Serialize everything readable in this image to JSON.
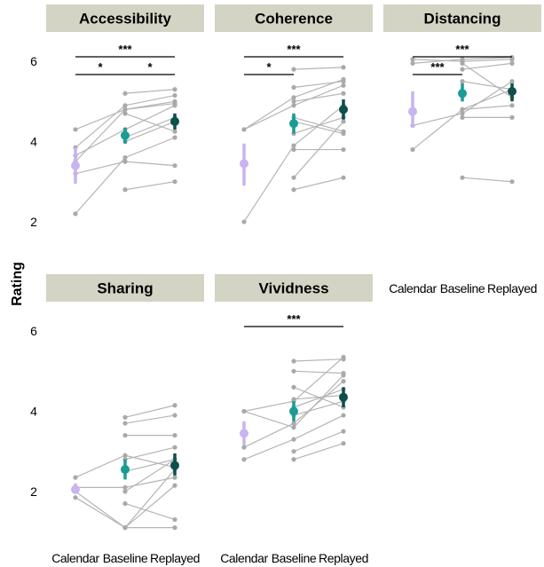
{
  "chart_data": {
    "type": "scatter",
    "ylabel": "Rating",
    "categories": [
      "Calendar",
      "Baseline",
      "Replayed"
    ],
    "ylim": [
      1.6,
      6.6
    ],
    "yticks": [
      2,
      4,
      6
    ],
    "colors": {
      "Calendar": "#c9b3f0",
      "Baseline": "#1a9b96",
      "Replayed": "#0d4f4a",
      "lines": "#b5b5b5",
      "strip": "#d4d4c4"
    },
    "panels": [
      {
        "title": "Accessibility",
        "participants": [
          [
            4.3,
            4.8,
            4.95
          ],
          [
            3.85,
            4.9,
            5.15
          ],
          [
            3.65,
            4.3,
            4.9
          ],
          [
            3.5,
            4.8,
            5.0
          ],
          [
            3.2,
            3.5,
            3.4
          ],
          [
            2.2,
            3.6,
            4.1
          ],
          [
            null,
            5.2,
            5.3
          ],
          [
            null,
            4.7,
            4.25
          ],
          [
            null,
            4.1,
            4.6
          ],
          [
            null,
            2.8,
            3.0
          ],
          [
            null,
            4.0,
            4.5
          ]
        ],
        "means": [
          3.4,
          4.15,
          4.5
        ],
        "ci": [
          [
            2.95,
            3.85
          ],
          [
            3.95,
            4.35
          ],
          [
            4.3,
            4.7
          ]
        ],
        "significance": [
          {
            "from": "Calendar",
            "to": "Replayed",
            "label": "***",
            "level": 0
          },
          {
            "from": "Calendar",
            "to": "Baseline",
            "label": "*",
            "level": 1
          },
          {
            "from": "Baseline",
            "to": "Replayed",
            "label": "*",
            "level": 1
          }
        ]
      },
      {
        "title": "Coherence",
        "participants": [
          [
            4.3,
            5.1,
            5.55
          ],
          [
            4.3,
            4.9,
            5.4
          ],
          [
            2.0,
            3.9,
            4.9
          ],
          [
            null,
            3.1,
            4.5
          ],
          [
            null,
            2.8,
            3.1
          ],
          [
            null,
            5.8,
            5.85
          ],
          [
            null,
            5.35,
            5.5
          ],
          [
            null,
            4.6,
            4.25
          ],
          [
            null,
            4.5,
            4.2
          ],
          [
            null,
            3.8,
            3.8
          ],
          [
            null,
            4.2,
            4.6
          ],
          [
            null,
            5.0,
            5.2
          ]
        ],
        "means": [
          3.45,
          4.45,
          4.8
        ],
        "ci": [
          [
            2.9,
            3.95
          ],
          [
            4.2,
            4.7
          ],
          [
            4.55,
            5.05
          ]
        ],
        "significance": [
          {
            "from": "Calendar",
            "to": "Replayed",
            "label": "***",
            "level": 0
          },
          {
            "from": "Calendar",
            "to": "Baseline",
            "label": "*",
            "level": 1
          }
        ]
      },
      {
        "title": "Distancing",
        "participants": [
          [
            6.05,
            6.0,
            6.05
          ],
          [
            5.95,
            6.05,
            6.1
          ],
          [
            4.4,
            4.7,
            5.5
          ],
          [
            3.8,
            4.8,
            5.3
          ],
          [
            null,
            3.1,
            3.0
          ],
          [
            null,
            5.8,
            5.95
          ],
          [
            null,
            5.5,
            5.3
          ],
          [
            null,
            4.6,
            4.6
          ],
          [
            null,
            4.8,
            4.9
          ],
          [
            null,
            5.95,
            5.1
          ]
        ],
        "means": [
          4.75,
          5.2,
          5.25
        ],
        "ci": [
          [
            4.35,
            5.25
          ],
          [
            5.0,
            5.45
          ],
          [
            5.0,
            5.45
          ]
        ],
        "significance": [
          {
            "from": "Calendar",
            "to": "Replayed",
            "label": "***",
            "level": 0
          },
          {
            "from": "Calendar",
            "to": "Baseline",
            "label": "***",
            "level": 1
          }
        ]
      },
      {
        "title": "Sharing",
        "participants": [
          [
            2.35,
            2.9,
            2.6
          ],
          [
            2.1,
            2.1,
            2.35
          ],
          [
            2.0,
            1.1,
            2.15
          ],
          [
            1.85,
            1.1,
            2.55
          ],
          [
            null,
            3.85,
            4.15
          ],
          [
            null,
            3.7,
            3.9
          ],
          [
            null,
            3.4,
            3.4
          ],
          [
            null,
            2.8,
            3.1
          ],
          [
            null,
            2.0,
            2.8
          ],
          [
            null,
            1.7,
            1.3
          ],
          [
            null,
            1.1,
            1.1
          ],
          [
            null,
            2.5,
            2.8
          ]
        ],
        "means": [
          2.05,
          2.55,
          2.65
        ],
        "ci": [
          [
            1.95,
            2.2
          ],
          [
            2.3,
            2.8
          ],
          [
            2.4,
            2.95
          ]
        ],
        "significance": []
      },
      {
        "title": "Vividness",
        "participants": [
          [
            4.0,
            4.25,
            5.35
          ],
          [
            4.0,
            3.6,
            4.9
          ],
          [
            3.1,
            3.7,
            4.75
          ],
          [
            2.8,
            3.3,
            3.9
          ],
          [
            null,
            5.25,
            5.3
          ],
          [
            null,
            5.0,
            4.95
          ],
          [
            null,
            4.3,
            4.4
          ],
          [
            null,
            3.9,
            4.25
          ],
          [
            null,
            3.0,
            3.5
          ],
          [
            null,
            2.8,
            3.2
          ],
          [
            null,
            4.6,
            4.1
          ],
          [
            null,
            4.1,
            4.55
          ]
        ],
        "means": [
          3.45,
          4.0,
          4.35
        ],
        "ci": [
          [
            3.15,
            3.75
          ],
          [
            3.75,
            4.25
          ],
          [
            4.1,
            4.6
          ]
        ],
        "significance": [
          {
            "from": "Calendar",
            "to": "Replayed",
            "label": "***",
            "level": 0
          }
        ]
      }
    ]
  }
}
